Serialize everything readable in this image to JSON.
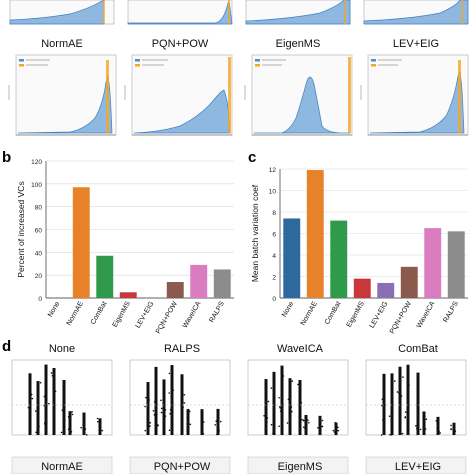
{
  "panel_a": {
    "row1_titles": [
      "NormAE",
      "PQN+POW",
      "EigenMS",
      "LEV+EIG"
    ],
    "legend_colors": [
      "#4c8fd6",
      "#f5a623"
    ]
  },
  "panel_letters": {
    "b": "b",
    "c": "c",
    "d": "d"
  },
  "panel_d": {
    "row0_titles": [
      "None",
      "RALPS",
      "WaveICA",
      "ComBat"
    ],
    "row1_titles": [
      "NormAE",
      "PQN+POW",
      "EigenMS",
      "LEV+EIG"
    ]
  },
  "chart_data": [
    {
      "id": "b",
      "type": "bar",
      "ylabel": "Percent of increased VCs",
      "categories": [
        "None",
        "NormAE",
        "ComBat",
        "EigenMS",
        "LEV+EIG",
        "PQN+POW",
        "WaveICA",
        "RALPS"
      ],
      "values": [
        0,
        97,
        37,
        5,
        0,
        14,
        29,
        25
      ],
      "ylim": [
        0,
        120
      ],
      "yticks": [
        0,
        20,
        40,
        60,
        80,
        100,
        120
      ],
      "colors": [
        "#2c6a9e",
        "#e8822a",
        "#2f9a4a",
        "#c8383a",
        "#8a6fb5",
        "#8c5a4c",
        "#d97cc0",
        "#8c8c8c"
      ],
      "grid": true
    },
    {
      "id": "c",
      "type": "bar",
      "ylabel": "Mean batch variation coef",
      "categories": [
        "None",
        "NormAE",
        "ComBat",
        "EigenMS",
        "LEV+EIG",
        "PQN+POW",
        "WaveICA",
        "RALPS"
      ],
      "values": [
        7.4,
        11.9,
        7.2,
        1.8,
        1.4,
        2.9,
        6.5,
        6.2
      ],
      "ylim": [
        0,
        12
      ],
      "yticks": [
        0,
        2,
        4,
        6,
        8,
        10,
        12
      ],
      "colors": [
        "#2c6a9e",
        "#e8822a",
        "#2f9a4a",
        "#c8383a",
        "#8a6fb5",
        "#8c5a4c",
        "#d97cc0",
        "#8c8c8c"
      ],
      "grid": true
    }
  ]
}
